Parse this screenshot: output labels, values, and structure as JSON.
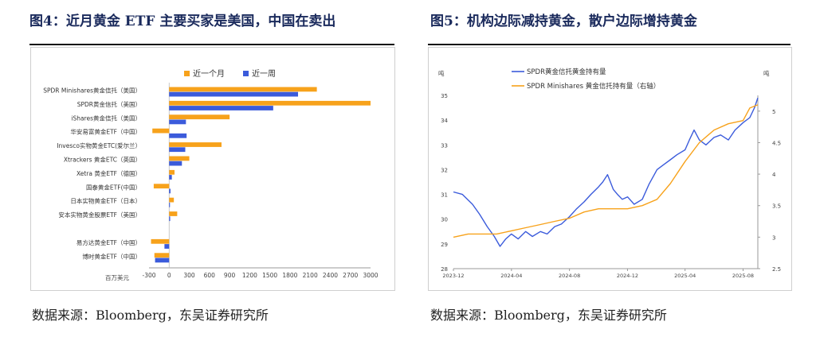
{
  "left": {
    "title": "图4：近月黄金 ETF 主要买家是美国，中国在卖出",
    "source": "数据来源：Bloomberg，东吴证券研究所"
  },
  "right": {
    "title": "图5：机构边际减持黄金，散户边际增持黄金",
    "source": "数据来源：Bloomberg，东吴证券研究所"
  },
  "colors": {
    "orange": "#f7a21b",
    "blue": "#3b5bdb",
    "title": "#1a2a5c"
  },
  "chart_data": [
    {
      "type": "bar",
      "orientation": "horizontal",
      "unit_label": "百万美元",
      "categories": [
        "SPDR Minishares黄金信托（美国）",
        "SPDR黄金信托（美国）",
        "iShares黄金信托（美国）",
        "华安易富黄金ETF（中国）",
        "Invesco实物黄金ETC(爱尔兰）",
        "Xtrackers 黄金ETC（英国）",
        "Xetra 黄金ETF（德国）",
        "国泰黄金ETF(中国）",
        "日本实物黄金ETF（日本）",
        "安本实物黄金股票ETF（美国）",
        "",
        "易方达黄金ETF（中国）",
        "博时黄金ETF（中国）"
      ],
      "series": [
        {
          "name": "近一个月",
          "values": [
            2200,
            3000,
            900,
            -250,
            780,
            300,
            80,
            -230,
            70,
            120,
            null,
            -270,
            -220
          ]
        },
        {
          "name": "近一周",
          "values": [
            1920,
            1550,
            250,
            260,
            240,
            190,
            40,
            20,
            10,
            15,
            null,
            -70,
            -210
          ]
        }
      ],
      "xticks": [
        -300,
        0,
        300,
        600,
        900,
        1200,
        1500,
        1800,
        2100,
        2400,
        2700,
        3000
      ],
      "xlim": [
        -300,
        3000
      ],
      "legend": "top"
    },
    {
      "type": "line",
      "ylabel_left": "吨",
      "ylabel_right": "吨",
      "ylim": [
        28,
        35
      ],
      "yticks": [
        28,
        29,
        30,
        31,
        32,
        33,
        34,
        35
      ],
      "y2lim": [
        2.5,
        5.25
      ],
      "y2ticks": [
        2.5,
        3,
        3.5,
        4,
        4.5,
        5
      ],
      "xlim": [
        "2023-12",
        "2025-09"
      ],
      "xticks": [
        "2023-12",
        "2024-04",
        "2024-08",
        "2024-12",
        "2025-04",
        "2025-08"
      ],
      "legend": "top",
      "series": [
        {
          "name": "SPDR黄金信托黄金持有量",
          "axis": "left",
          "x": [
            "2023-12-01",
            "2023-12-20",
            "2024-01-10",
            "2024-01-25",
            "2024-02-10",
            "2024-02-25",
            "2024-03-08",
            "2024-03-20",
            "2024-04-01",
            "2024-04-15",
            "2024-05-01",
            "2024-05-15",
            "2024-06-01",
            "2024-06-15",
            "2024-07-01",
            "2024-07-15",
            "2024-08-01",
            "2024-08-15",
            "2024-09-01",
            "2024-09-15",
            "2024-10-01",
            "2024-10-10",
            "2024-10-20",
            "2024-11-01",
            "2024-11-10",
            "2024-11-20",
            "2024-12-01",
            "2024-12-15",
            "2025-01-01",
            "2025-01-15",
            "2025-02-01",
            "2025-02-15",
            "2025-03-01",
            "2025-03-15",
            "2025-04-01",
            "2025-04-10",
            "2025-04-20",
            "2025-05-01",
            "2025-05-15",
            "2025-06-01",
            "2025-06-15",
            "2025-07-01",
            "2025-07-15",
            "2025-08-01",
            "2025-08-15",
            "2025-08-25",
            "2025-09-01"
          ],
          "y": [
            31.1,
            31.0,
            30.6,
            30.2,
            29.7,
            29.3,
            28.9,
            29.2,
            29.4,
            29.2,
            29.5,
            29.3,
            29.5,
            29.4,
            29.7,
            29.8,
            30.1,
            30.4,
            30.7,
            31.0,
            31.3,
            31.5,
            31.8,
            31.2,
            31.0,
            30.8,
            30.9,
            30.6,
            30.8,
            31.4,
            32.0,
            32.2,
            32.4,
            32.6,
            32.8,
            33.2,
            33.6,
            33.2,
            33.0,
            33.3,
            33.4,
            33.2,
            33.6,
            33.9,
            34.1,
            34.5,
            34.9
          ]
        },
        {
          "name": "SPDR Minishares 黄金信托持有量（右轴）",
          "axis": "right",
          "x": [
            "2023-12-01",
            "2024-01-01",
            "2024-02-01",
            "2024-03-01",
            "2024-04-01",
            "2024-05-01",
            "2024-06-01",
            "2024-07-01",
            "2024-08-01",
            "2024-09-01",
            "2024-10-01",
            "2024-11-01",
            "2024-12-01",
            "2025-01-01",
            "2025-02-01",
            "2025-03-01",
            "2025-04-01",
            "2025-05-01",
            "2025-06-01",
            "2025-07-01",
            "2025-08-01",
            "2025-08-15",
            "2025-09-01"
          ],
          "y": [
            3.0,
            3.05,
            3.05,
            3.05,
            3.1,
            3.15,
            3.2,
            3.25,
            3.3,
            3.4,
            3.45,
            3.45,
            3.45,
            3.5,
            3.6,
            3.85,
            4.2,
            4.5,
            4.7,
            4.8,
            4.85,
            5.05,
            5.1
          ]
        }
      ]
    }
  ]
}
